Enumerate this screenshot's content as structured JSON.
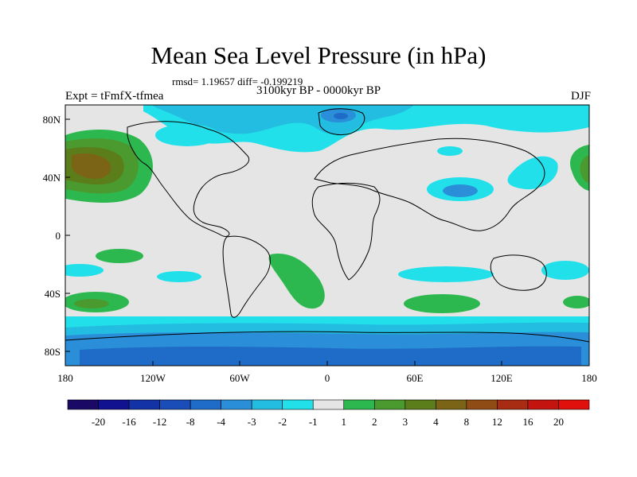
{
  "title": "Mean Sea Level Pressure (in hPa)",
  "stats": "rmsd= 1.19657 diff= -0.199219",
  "left_label": "Expt = tFmfX-tfmea",
  "center_label": "3100kyr BP - 0000kyr BP",
  "right_label": "DJF",
  "lat_labels": [
    "80N",
    "40N",
    "0",
    "40S",
    "80S"
  ],
  "lon_labels": [
    "180",
    "120W",
    "60W",
    "0",
    "60E",
    "120E",
    "180"
  ],
  "legend": {
    "labels": [
      "-20",
      "-16",
      "-12",
      "-8",
      "-4",
      "-3",
      "-2",
      "-1",
      "1",
      "2",
      "3",
      "4",
      "8",
      "12",
      "16",
      "20"
    ],
    "colors": [
      "#1a0a66",
      "#10128f",
      "#1232a6",
      "#1a4db8",
      "#1f6cc8",
      "#2a8ed8",
      "#22bde0",
      "#22e0ea",
      "#e5e5e5",
      "#2db84f",
      "#4a9a30",
      "#5b7e1b",
      "#7b6416",
      "#8f4c14",
      "#a82c12",
      "#c41410",
      "#e0100c"
    ]
  },
  "palette": {
    "neutral": "#e5e5e5",
    "light_cyan": "#22e0ea",
    "cyan": "#22bde0",
    "blue": "#2a8ed8",
    "dark_blue": "#1f6cc8",
    "green": "#2db84f",
    "dark_green": "#4a9a30",
    "olive": "#5b7e1b",
    "brown": "#7b6416"
  }
}
